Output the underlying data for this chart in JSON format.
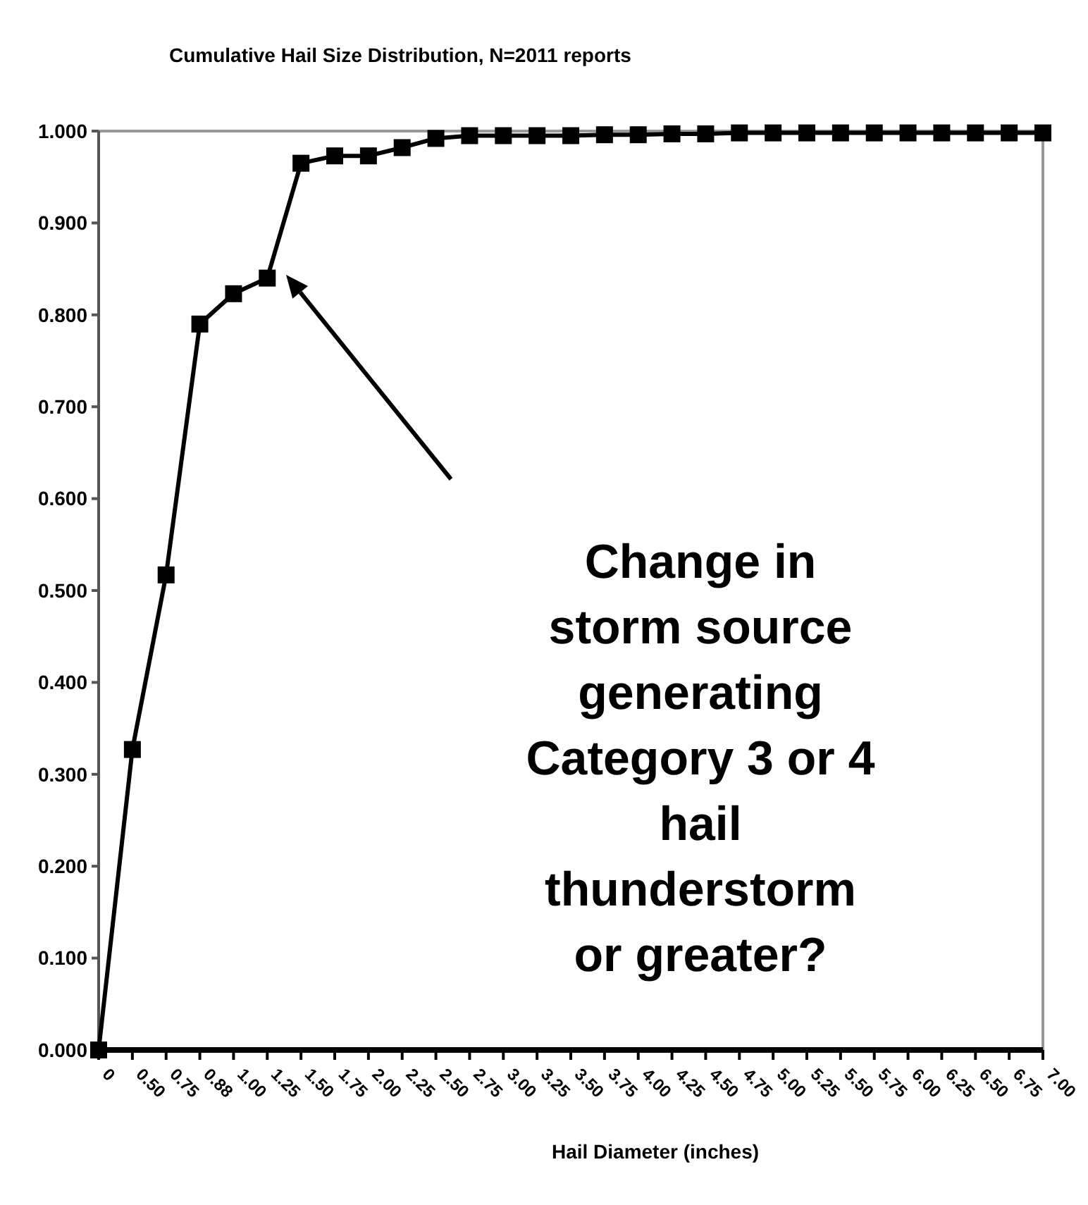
{
  "chart_data": {
    "type": "line",
    "title": "Cumulative Hail Size Distribution, N=2011 reports",
    "xlabel": "Hail Diameter (inches)",
    "categories": [
      "0",
      "0.50",
      "0.75",
      "0.88",
      "1.00",
      "1.25",
      "1.50",
      "1.75",
      "2.00",
      "2.25",
      "2.50",
      "2.75",
      "3.00",
      "3.25",
      "3.50",
      "3.75",
      "4.00",
      "4.25",
      "4.50",
      "4.75",
      "5.00",
      "5.25",
      "5.50",
      "5.75",
      "6.00",
      "6.25",
      "6.50",
      "6.75",
      "7.00"
    ],
    "series": [
      {
        "color": "#000000",
        "values": [
          0,
          0.327,
          0.517,
          0.79,
          0.823,
          0.84,
          0.965,
          0.973,
          0.973,
          0.982,
          0.992,
          0.995,
          0.995,
          0.995,
          0.995,
          0.996,
          0.996,
          0.997,
          0.997,
          0.998,
          0.998,
          0.998,
          0.998,
          0.998,
          0.998,
          0.998,
          0.998,
          0.998,
          0.998
        ]
      }
    ],
    "ylim": [
      0,
      1
    ],
    "yticks": [
      {
        "value": 0,
        "label": "0.000"
      },
      {
        "value": 0.1,
        "label": "0.100"
      },
      {
        "value": 0.2,
        "label": "0.200"
      },
      {
        "value": 0.3,
        "label": "0.300"
      },
      {
        "value": 0.4,
        "label": "0.400"
      },
      {
        "value": 0.5,
        "label": "0.500"
      },
      {
        "value": 0.6,
        "label": "0.600"
      },
      {
        "value": 0.7,
        "label": "0.700"
      },
      {
        "value": 0.8,
        "label": "0.800"
      },
      {
        "value": 0.9,
        "label": "0.900"
      },
      {
        "value": 1,
        "label": "1.000"
      }
    ],
    "marker": "square",
    "line_style": "solid",
    "grid": false,
    "annotations": [
      "Change in\nstorm source\ngenerating\nCategory 3 or 4\nhail\nthunderstorm\nor greater?"
    ]
  }
}
